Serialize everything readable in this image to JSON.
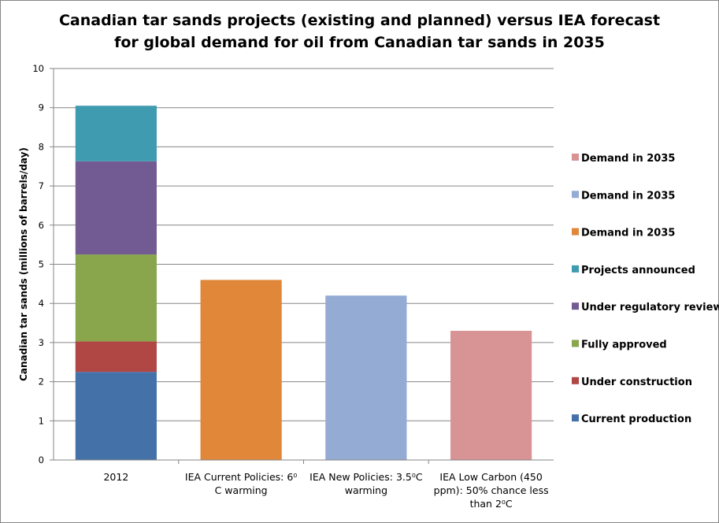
{
  "chart_data": {
    "type": "bar",
    "title": "Canadian tar sands projects (existing and planned) versus IEA forecast\nfor global demand for oil from Canadian tar sands in 2035",
    "ylabel": "Canadian tar sands (millions of barrels/day)",
    "xlabel": "",
    "ylim": [
      0,
      10
    ],
    "yticks": [
      "0",
      "1",
      "2",
      "3",
      "4",
      "5",
      "6",
      "7",
      "8",
      "9",
      "10"
    ],
    "grid": true,
    "legend_position": "right",
    "categories": [
      "2012",
      "IEA Current Policies: 6⁰ C warming",
      "IEA New Policies: 3.5⁰C warming",
      "IEA Low Carbon (450 ppm): 50% chance less than 2⁰C"
    ],
    "category_lines": [
      [
        "2012"
      ],
      [
        "IEA Current Policies: 6⁰",
        "C warming"
      ],
      [
        "IEA New Policies: 3.5⁰C",
        "warming"
      ],
      [
        "IEA Low Carbon (450",
        "ppm): 50% chance less",
        "than 2⁰C"
      ]
    ],
    "series": [
      {
        "name": "Current production",
        "color": "#4472a8",
        "values": [
          2.25,
          0,
          0,
          0
        ]
      },
      {
        "name": "Under construction",
        "color": "#b04744",
        "values": [
          0.78,
          0,
          0,
          0
        ]
      },
      {
        "name": "Fully approved",
        "color": "#89a64c",
        "values": [
          2.22,
          0,
          0,
          0
        ]
      },
      {
        "name": "Under regulatory review",
        "color": "#725a93",
        "values": [
          2.38,
          0,
          0,
          0
        ]
      },
      {
        "name": "Projects announced",
        "color": "#3f9bb0",
        "values": [
          1.42,
          0,
          0,
          0
        ]
      },
      {
        "name": "Demand in 2035",
        "color": "#e0873a",
        "values": [
          0,
          4.6,
          0,
          0
        ]
      },
      {
        "name": "Demand in 2035",
        "color": "#94abd4",
        "values": [
          0,
          0,
          4.2,
          0
        ]
      },
      {
        "name": "Demand in 2035",
        "color": "#d89394",
        "values": [
          0,
          0,
          0,
          3.3
        ]
      }
    ]
  }
}
